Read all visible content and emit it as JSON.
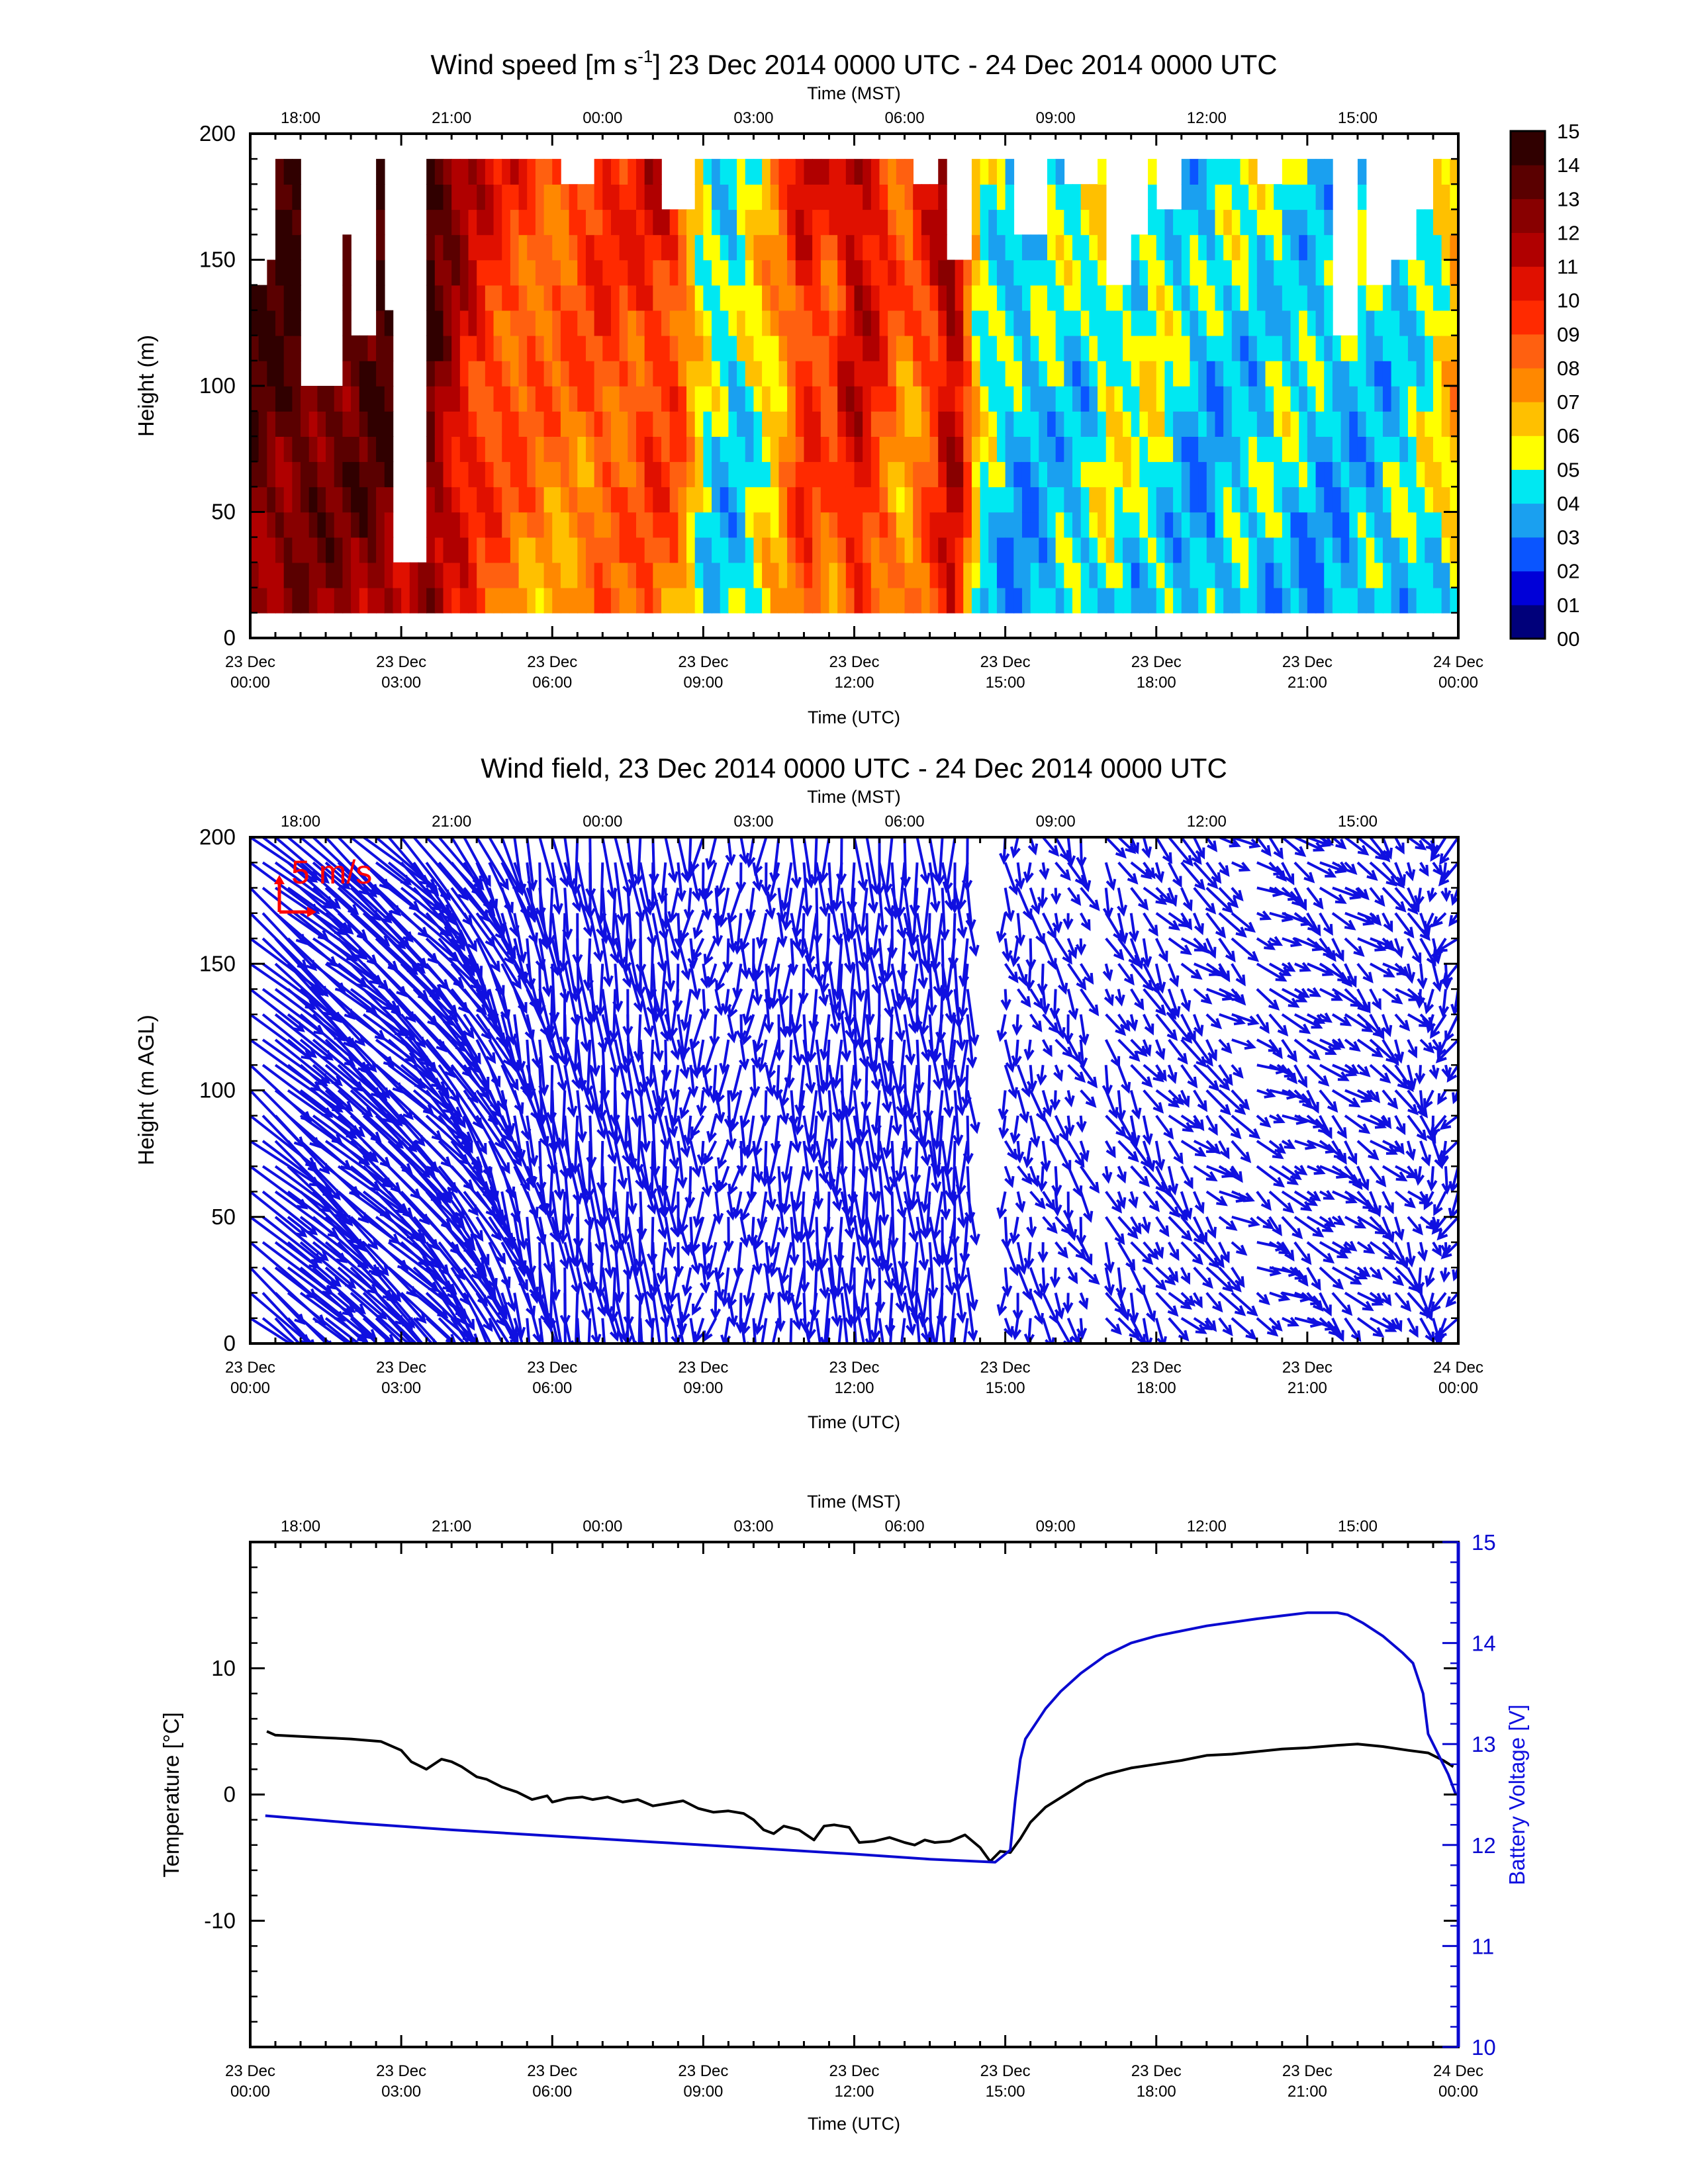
{
  "chart_data": [
    {
      "type": "heatmap",
      "title_pre": "Wind speed [m s",
      "title_sup": "-1",
      "title_post": "] 23 Dec 2014 0000 UTC - 24 Dec 2014 0000 UTC",
      "xlabel": "Time (UTC)",
      "x2label": "Time (MST)",
      "ylabel": "Height (m)",
      "xlim_hours": [
        0,
        24
      ],
      "ylim": [
        0,
        200
      ],
      "yticks": [
        "0",
        "50",
        "100",
        "150",
        "200"
      ],
      "xticks_utc": [
        [
          "23 Dec",
          "00:00"
        ],
        [
          "23 Dec",
          "03:00"
        ],
        [
          "23 Dec",
          "06:00"
        ],
        [
          "23 Dec",
          "09:00"
        ],
        [
          "23 Dec",
          "12:00"
        ],
        [
          "23 Dec",
          "15:00"
        ],
        [
          "23 Dec",
          "18:00"
        ],
        [
          "23 Dec",
          "21:00"
        ],
        [
          "24 Dec",
          "00:00"
        ]
      ],
      "xticks_mst": [
        "18:00",
        "21:00",
        "00:00",
        "03:00",
        "06:00",
        "09:00",
        "12:00",
        "15:00"
      ],
      "colorbar_labels": [
        "00",
        "01",
        "02",
        "03",
        "04",
        "05",
        "06",
        "07",
        "08",
        "09",
        "10",
        "11",
        "12",
        "13",
        "14",
        "15"
      ],
      "colorbar_colors": [
        "#00007a",
        "#0000d8",
        "#0a55ff",
        "#1aa0f0",
        "#00e8f2",
        "#ffff00",
        "#ffc000",
        "#ff8800",
        "#ff6010",
        "#ff2a00",
        "#e01000",
        "#b00000",
        "#880000",
        "#5a0000",
        "#300000"
      ],
      "data_height_range_m": [
        10,
        190
      ],
      "speed_by_hour_ms": [
        [
          0.0,
          13.6
        ],
        [
          0.5,
          13.4
        ],
        [
          1.0,
          13.8
        ],
        [
          1.5,
          13.5
        ],
        [
          2.0,
          13.2
        ],
        [
          2.5,
          13.9
        ],
        [
          3.0,
          13.1
        ],
        [
          3.5,
          13.6
        ],
        [
          4.0,
          11.5
        ],
        [
          4.5,
          9.8
        ],
        [
          5.0,
          8.9
        ],
        [
          5.5,
          8.4
        ],
        [
          6.0,
          7.9
        ],
        [
          6.5,
          8.3
        ],
        [
          7.0,
          9.1
        ],
        [
          7.5,
          8.6
        ],
        [
          8.0,
          9.6
        ],
        [
          8.5,
          8.9
        ],
        [
          9.0,
          5.2
        ],
        [
          9.5,
          4.1
        ],
        [
          10.0,
          5.4
        ],
        [
          10.5,
          6.8
        ],
        [
          11.0,
          10.1
        ],
        [
          11.5,
          8.4
        ],
        [
          12.0,
          11.2
        ],
        [
          12.5,
          9.5
        ],
        [
          13.0,
          7.2
        ],
        [
          13.5,
          9.2
        ],
        [
          14.0,
          12.1
        ],
        [
          14.5,
          5.1
        ],
        [
          15.0,
          4.2
        ],
        [
          15.5,
          3.6
        ],
        [
          16.0,
          4.6
        ],
        [
          16.5,
          4.2
        ],
        [
          17.0,
          5.5
        ],
        [
          17.5,
          4.8
        ],
        [
          18.0,
          5.4
        ],
        [
          18.5,
          4.1
        ],
        [
          19.0,
          3.7
        ],
        [
          19.5,
          4.5
        ],
        [
          20.0,
          4.2
        ],
        [
          20.5,
          4.6
        ],
        [
          21.0,
          4.1
        ],
        [
          21.5,
          3.9
        ],
        [
          22.0,
          4.3
        ],
        [
          22.5,
          4.1
        ],
        [
          23.0,
          4.6
        ],
        [
          23.5,
          5.1
        ],
        [
          24.0,
          6.8
        ]
      ],
      "height_factor": [
        [
          10,
          0.88
        ],
        [
          50,
          0.96
        ],
        [
          100,
          1.0
        ],
        [
          150,
          1.06
        ],
        [
          190,
          1.12
        ]
      ],
      "missing_data_color": "#ffffff"
    },
    {
      "type": "scatter",
      "title": "Wind field, 23 Dec 2014 0000 UTC - 24 Dec 2014 0000 UTC",
      "xlabel": "Time (UTC)",
      "x2label": "Time (MST)",
      "ylabel": "Height (m AGL)",
      "xlim_hours": [
        0,
        24
      ],
      "ylim": [
        0,
        200
      ],
      "yticks": [
        "0",
        "50",
        "100",
        "150",
        "200"
      ],
      "xticks_utc": [
        [
          "23 Dec",
          "00:00"
        ],
        [
          "23 Dec",
          "03:00"
        ],
        [
          "23 Dec",
          "06:00"
        ],
        [
          "23 Dec",
          "09:00"
        ],
        [
          "23 Dec",
          "12:00"
        ],
        [
          "23 Dec",
          "15:00"
        ],
        [
          "23 Dec",
          "18:00"
        ],
        [
          "23 Dec",
          "21:00"
        ],
        [
          "24 Dec",
          "00:00"
        ]
      ],
      "xticks_mst": [
        "18:00",
        "21:00",
        "00:00",
        "03:00",
        "06:00",
        "09:00",
        "12:00",
        "15:00"
      ],
      "reference_vector_label": "5 m/s",
      "reference_vector_color": "#ff0000",
      "vector_color": "#1010e0",
      "vector_heights_m": [
        0,
        10,
        20,
        30,
        40,
        50,
        60,
        70,
        80,
        90,
        100,
        110,
        120,
        130,
        140,
        150,
        160,
        170,
        180,
        190,
        200
      ],
      "vector_times_step_hours": 0.25,
      "wind_components_by_hour_ms": [
        [
          0.0,
          10.0,
          -8.0
        ],
        [
          3.0,
          9.0,
          -9.0
        ],
        [
          4.0,
          6.0,
          -9.0
        ],
        [
          5.0,
          3.0,
          -8.0
        ],
        [
          6.0,
          1.0,
          -9.0
        ],
        [
          8.0,
          1.0,
          -8.5
        ],
        [
          9.0,
          -0.5,
          -4.5
        ],
        [
          10.0,
          -0.5,
          -5.5
        ],
        [
          12.0,
          0.5,
          -9.0
        ],
        [
          13.0,
          0.5,
          -7.5
        ],
        [
          14.0,
          0.0,
          -9.0
        ],
        [
          15.0,
          0.5,
          -4.0
        ],
        [
          16.0,
          1.2,
          -3.5
        ],
        [
          18.0,
          2.2,
          -3.5
        ],
        [
          20.0,
          3.2,
          -2.0
        ],
        [
          22.0,
          3.0,
          -2.5
        ],
        [
          23.0,
          2.0,
          -3.0
        ],
        [
          24.0,
          -2.0,
          -3.0
        ]
      ],
      "missing_time_gaps_hours": [
        [
          14.4,
          14.8
        ],
        [
          16.6,
          16.8
        ],
        [
          17.8,
          18.0
        ],
        [
          19.7,
          19.9
        ]
      ]
    },
    {
      "type": "line",
      "title": "",
      "xlabel": "Time (UTC)",
      "x2label": "Time (MST)",
      "ylabel": "Temperature [°C]",
      "y2label": "Battery Voltage [V]",
      "xlim_hours": [
        0,
        24
      ],
      "ylim": [
        -20,
        20
      ],
      "y2lim": [
        10,
        15
      ],
      "yticks": [
        "10",
        "0",
        "-10"
      ],
      "y2ticks": [
        "15",
        "14",
        "13",
        "12",
        "11",
        "10"
      ],
      "xticks_utc": [
        [
          "23 Dec",
          "00:00"
        ],
        [
          "23 Dec",
          "03:00"
        ],
        [
          "23 Dec",
          "06:00"
        ],
        [
          "23 Dec",
          "09:00"
        ],
        [
          "23 Dec",
          "12:00"
        ],
        [
          "23 Dec",
          "15:00"
        ],
        [
          "23 Dec",
          "18:00"
        ],
        [
          "23 Dec",
          "21:00"
        ],
        [
          "24 Dec",
          "00:00"
        ]
      ],
      "xticks_mst": [
        "18:00",
        "21:00",
        "00:00",
        "03:00",
        "06:00",
        "09:00",
        "12:00",
        "15:00"
      ],
      "series": [
        {
          "name": "Temperature",
          "color": "#000000",
          "axis": "left",
          "x": [
            0.33,
            0.5,
            1.0,
            1.5,
            2.0,
            2.3,
            2.6,
            3.0,
            3.2,
            3.5,
            3.8,
            4.0,
            4.2,
            4.5,
            4.7,
            5.0,
            5.3,
            5.6,
            5.9,
            6.0,
            6.3,
            6.6,
            6.8,
            7.1,
            7.4,
            7.7,
            8.0,
            8.3,
            8.6,
            8.9,
            9.2,
            9.5,
            9.8,
            10.0,
            10.2,
            10.4,
            10.6,
            10.9,
            11.2,
            11.4,
            11.6,
            11.9,
            12.1,
            12.4,
            12.7,
            13.0,
            13.2,
            13.4,
            13.6,
            13.9,
            14.2,
            14.5,
            14.7,
            14.9,
            15.1,
            15.3,
            15.5,
            15.8,
            16.2,
            16.6,
            17.0,
            17.5,
            18.0,
            18.5,
            19.0,
            19.5,
            20.0,
            20.5,
            21.0,
            21.3,
            21.6,
            22.0,
            22.5,
            23.0,
            23.4,
            23.7,
            23.9
          ],
          "y": [
            5.0,
            4.7,
            4.6,
            4.5,
            4.4,
            4.3,
            4.2,
            3.5,
            2.6,
            2.0,
            2.8,
            2.6,
            2.2,
            1.4,
            1.2,
            0.6,
            0.2,
            -0.4,
            -0.1,
            -0.6,
            -0.3,
            -0.2,
            -0.4,
            -0.2,
            -0.6,
            -0.4,
            -0.9,
            -0.7,
            -0.5,
            -1.1,
            -1.4,
            -1.3,
            -1.5,
            -2.0,
            -2.8,
            -3.1,
            -2.5,
            -2.8,
            -3.6,
            -2.5,
            -2.4,
            -2.6,
            -3.8,
            -3.7,
            -3.4,
            -3.8,
            -4.0,
            -3.6,
            -3.8,
            -3.7,
            -3.2,
            -4.2,
            -5.3,
            -4.5,
            -4.6,
            -3.5,
            -2.2,
            -1.0,
            0.0,
            1.0,
            1.6,
            2.1,
            2.4,
            2.7,
            3.1,
            3.2,
            3.4,
            3.6,
            3.7,
            3.8,
            3.9,
            4.0,
            3.8,
            3.5,
            3.3,
            2.7,
            2.2
          ]
        },
        {
          "name": "Battery Voltage",
          "color": "#0a0ad0",
          "axis": "right",
          "x": [
            0.3,
            2.0,
            4.0,
            6.0,
            8.0,
            10.0,
            12.0,
            13.5,
            14.8,
            15.1,
            15.2,
            15.3,
            15.4,
            15.6,
            15.8,
            16.1,
            16.5,
            17.0,
            17.5,
            18.0,
            19.0,
            20.0,
            20.5,
            21.0,
            21.4,
            21.6,
            21.8,
            22.1,
            22.5,
            22.9,
            23.1,
            23.3,
            23.4,
            23.6,
            23.8,
            23.95
          ],
          "y": [
            12.29,
            12.22,
            12.15,
            12.09,
            12.03,
            11.97,
            11.91,
            11.86,
            11.83,
            11.95,
            12.45,
            12.85,
            13.05,
            13.2,
            13.35,
            13.52,
            13.7,
            13.88,
            14.0,
            14.07,
            14.17,
            14.24,
            14.27,
            14.3,
            14.3,
            14.3,
            14.28,
            14.2,
            14.07,
            13.9,
            13.8,
            13.5,
            13.1,
            12.9,
            12.7,
            12.5
          ]
        }
      ]
    }
  ]
}
